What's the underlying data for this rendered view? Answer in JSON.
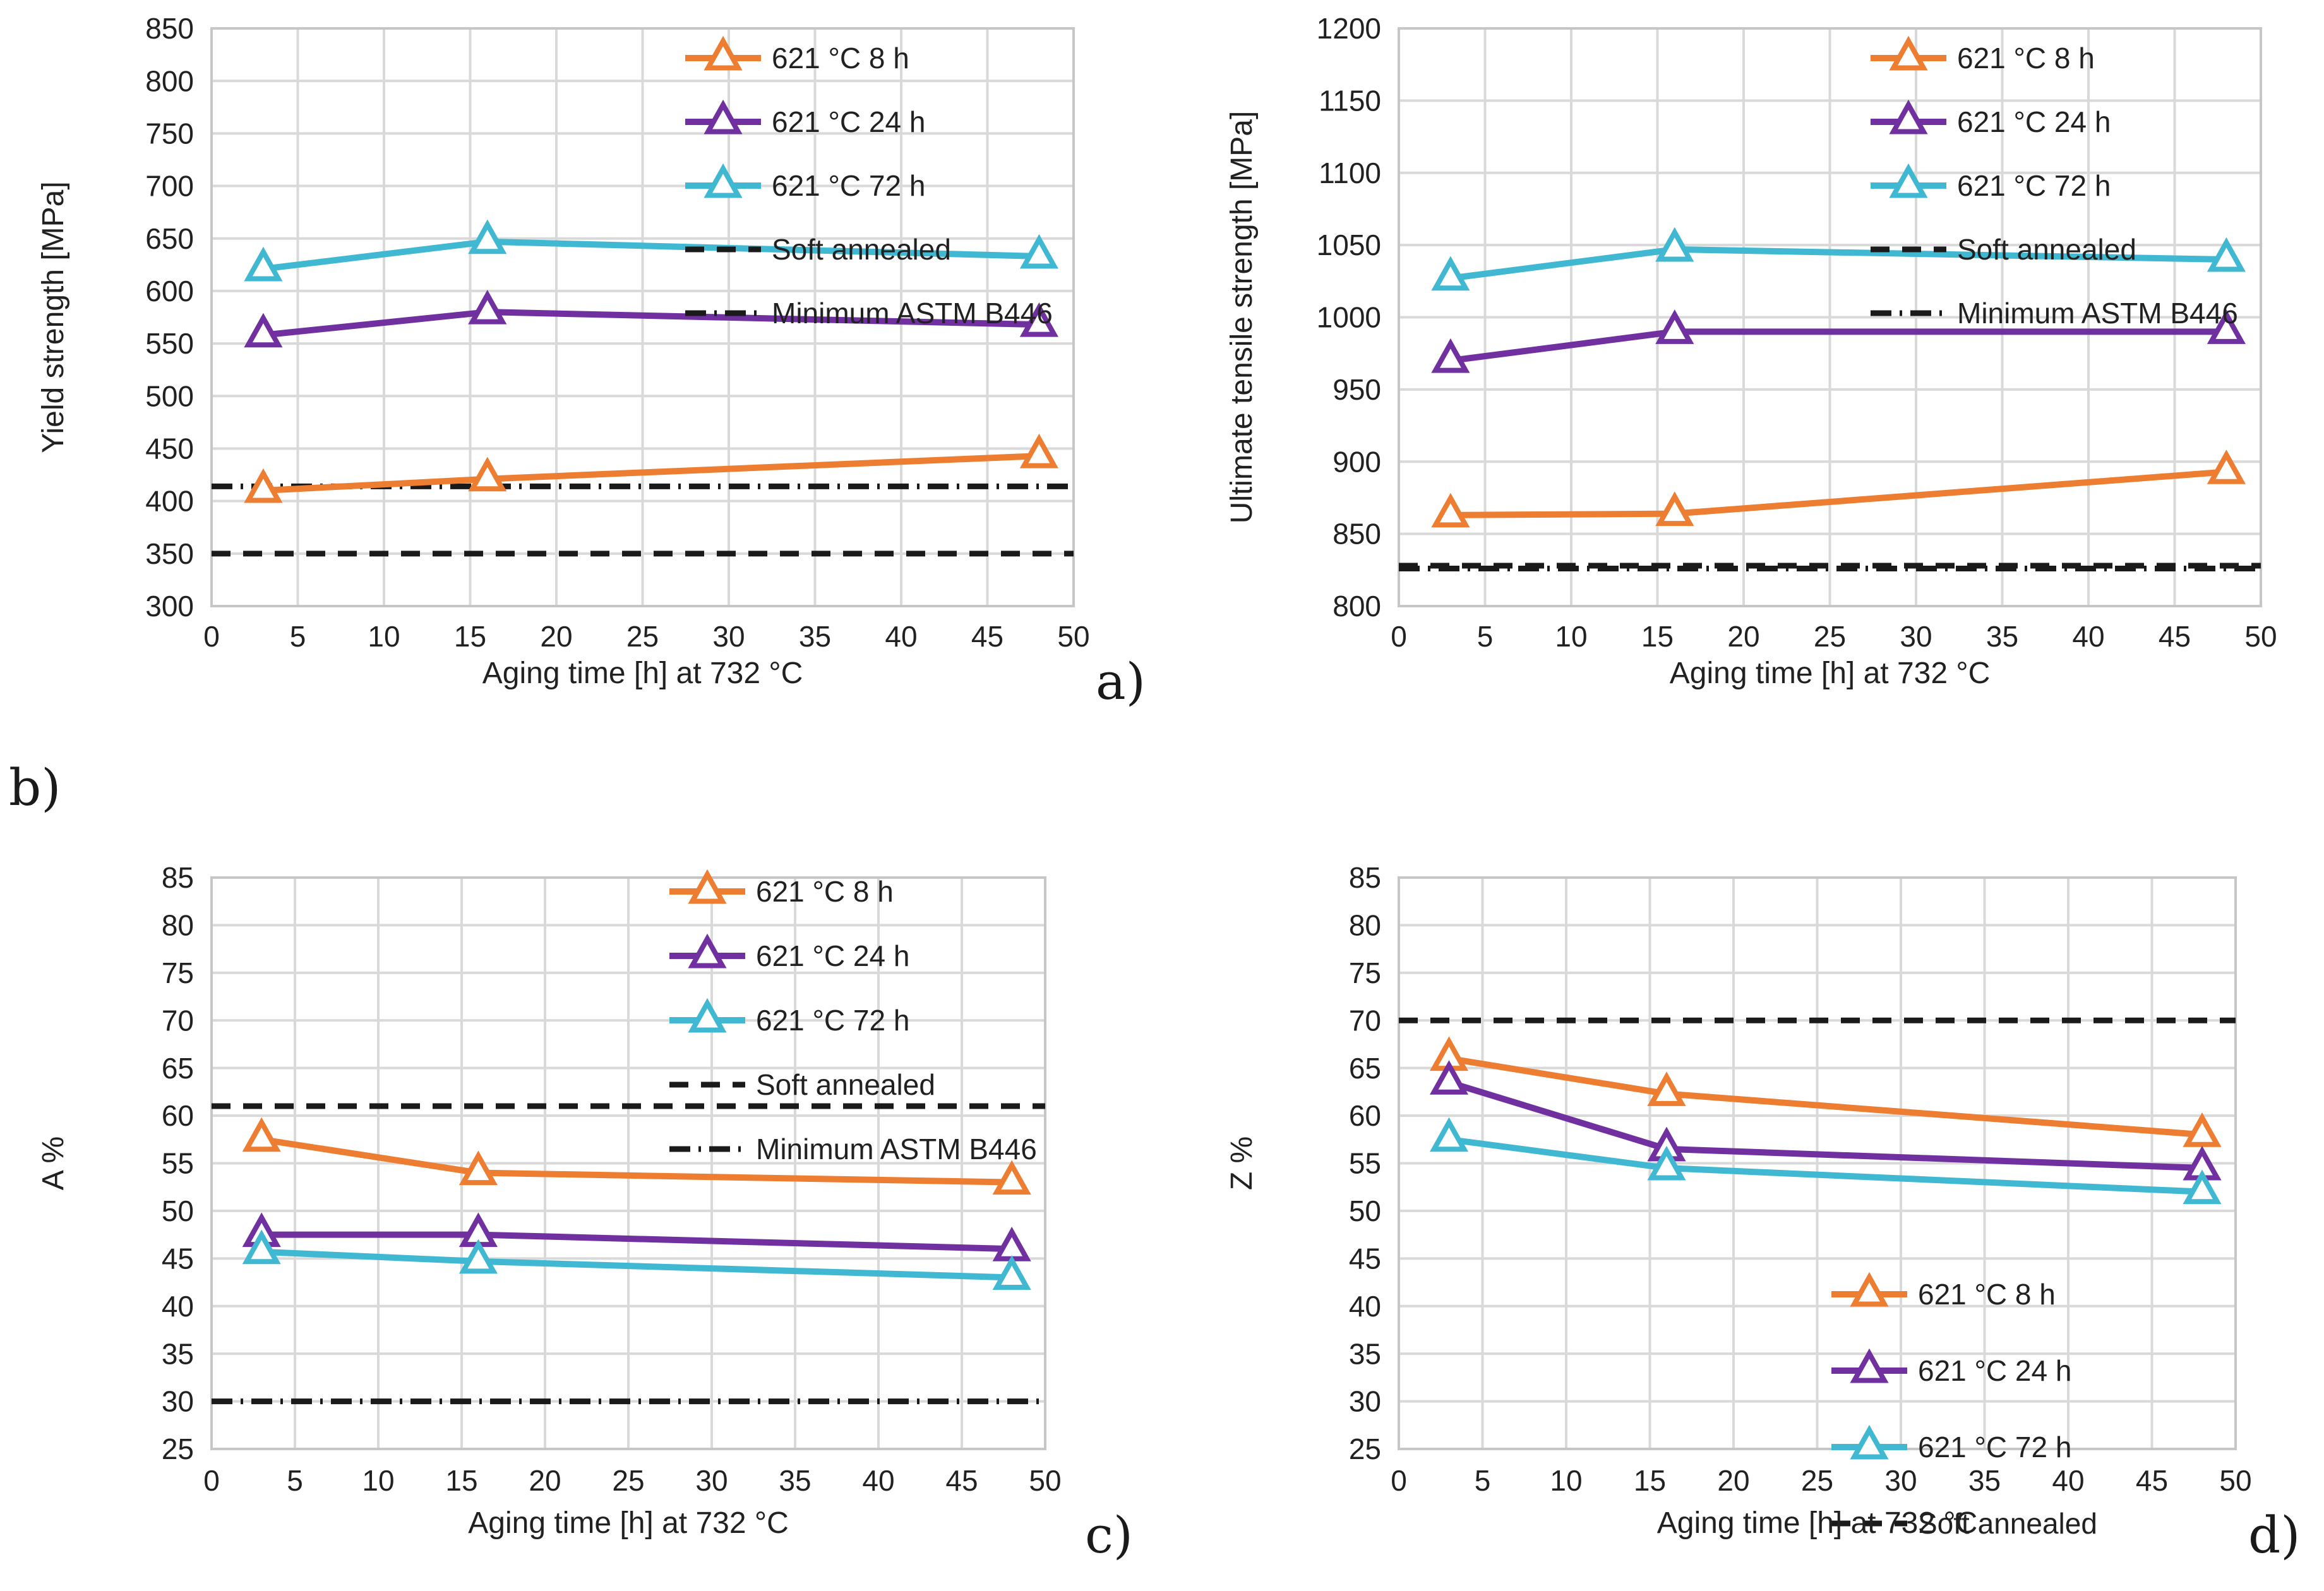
{
  "figure": {
    "panel_labels": {
      "a": "a)",
      "b": "b)",
      "c": "c)",
      "d": "d)"
    }
  },
  "chart_data": [
    {
      "id": "a",
      "type": "line",
      "ylabel": "Yield strength [MPa]",
      "xlabel": "Aging time [h] at 732 °C",
      "ylim": [
        300,
        850
      ],
      "ystep": 50,
      "xlim": [
        0,
        50
      ],
      "xstep": 5,
      "grid": true,
      "x": [
        3,
        16,
        48
      ],
      "series": [
        {
          "name": "621 °C 8 h",
          "color": "#ED7D31",
          "values": [
            410,
            421,
            443
          ]
        },
        {
          "name": "621 °C 24 h",
          "color": "#7030A0",
          "values": [
            558,
            580,
            568
          ]
        },
        {
          "name": "621 °C 72 h",
          "color": "#41B8D1",
          "values": [
            621,
            647,
            633
          ]
        }
      ],
      "ref_lines": [
        {
          "name": "Soft annealed",
          "style": "dashed",
          "value": 350
        },
        {
          "name": "Minimum ASTM B446",
          "style": "dashdot",
          "value": 414
        }
      ],
      "legend": {
        "position": "top-right",
        "entries": [
          "621 °C 8 h",
          "621 °C 24 h",
          "621 °C 72 h",
          "Soft annealed",
          "Minimum ASTM B446"
        ]
      }
    },
    {
      "id": "b",
      "type": "line",
      "ylabel": "Ultimate tensile strength [MPa]",
      "xlabel": "Aging time [h] at 732 °C",
      "ylim": [
        800,
        1200
      ],
      "ystep": 50,
      "xlim": [
        0,
        50
      ],
      "xstep": 5,
      "grid": true,
      "x": [
        3,
        16,
        48
      ],
      "series": [
        {
          "name": "621 °C 8 h",
          "color": "#ED7D31",
          "values": [
            863,
            864,
            893
          ]
        },
        {
          "name": "621 °C 24 h",
          "color": "#7030A0",
          "values": [
            970,
            990,
            990
          ]
        },
        {
          "name": "621 °C 72 h",
          "color": "#41B8D1",
          "values": [
            1027,
            1047,
            1040
          ]
        }
      ],
      "ref_lines": [
        {
          "name": "Soft annealed",
          "style": "dashed",
          "value": 828
        },
        {
          "name": "Minimum ASTM B446",
          "style": "dashdot",
          "value": 826
        }
      ],
      "legend": {
        "position": "top-right",
        "entries": [
          "621 °C 8 h",
          "621 °C 24 h",
          "621 °C 72 h",
          "Soft annealed",
          "Minimum ASTM B446"
        ]
      }
    },
    {
      "id": "c",
      "type": "line",
      "ylabel": "A %",
      "xlabel": "Aging time [h] at 732 °C",
      "ylim": [
        25,
        85
      ],
      "ystep": 5,
      "xlim": [
        0,
        50
      ],
      "xstep": 5,
      "grid": true,
      "x": [
        3,
        16,
        48
      ],
      "series": [
        {
          "name": "621 °C 8 h",
          "color": "#ED7D31",
          "values": [
            57.5,
            54,
            53
          ]
        },
        {
          "name": "621 °C 24 h",
          "color": "#7030A0",
          "values": [
            47.5,
            47.5,
            46
          ]
        },
        {
          "name": "621 °C 72 h",
          "color": "#41B8D1",
          "values": [
            45.7,
            44.7,
            43
          ]
        }
      ],
      "ref_lines": [
        {
          "name": "Soft annealed",
          "style": "dashed",
          "value": 61
        },
        {
          "name": "Minimum ASTM B446",
          "style": "dashdot",
          "value": 30
        }
      ],
      "legend": {
        "position": "top-right",
        "entries": [
          "621 °C 8 h",
          "621 °C 24 h",
          "621 °C 72 h",
          "Soft annealed",
          "Minimum ASTM B446"
        ]
      }
    },
    {
      "id": "d",
      "type": "line",
      "ylabel": "Z %",
      "xlabel": "Aging time [h] at 732 °C",
      "ylim": [
        25,
        85
      ],
      "ystep": 5,
      "xlim": [
        0,
        50
      ],
      "xstep": 5,
      "grid": true,
      "x": [
        3,
        16,
        48
      ],
      "series": [
        {
          "name": "621 °C 8 h",
          "color": "#ED7D31",
          "values": [
            66,
            62.3,
            58
          ]
        },
        {
          "name": "621 °C 24 h",
          "color": "#7030A0",
          "values": [
            63.5,
            56.5,
            54.5
          ]
        },
        {
          "name": "621 °C 72 h",
          "color": "#41B8D1",
          "values": [
            57.5,
            54.5,
            52
          ]
        }
      ],
      "ref_lines": [
        {
          "name": "Soft annealed",
          "style": "dashed",
          "value": 70
        }
      ],
      "legend": {
        "position": "bottom-right",
        "entries": [
          "621 °C 8 h",
          "621 °C 24 h",
          "621 °C 72 h",
          "Soft annealed"
        ]
      }
    }
  ]
}
